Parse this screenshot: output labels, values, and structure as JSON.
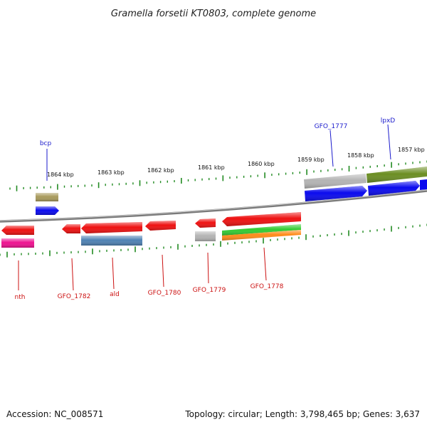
{
  "title": "Gramella forsetii KT0803, complete genome",
  "footer": {
    "accession": "Accession: NC_008571",
    "summary": "Topology: circular; Length: 3,798,465 bp; Genes: 3,637"
  },
  "scale_labels": [
    "1864 kbp",
    "1863 kbp",
    "1862 kbp",
    "1861 kbp",
    "1860 kbp",
    "1859 kbp",
    "1858 kbp",
    "1857 kbp"
  ],
  "gene_labels": {
    "top": [
      "bcp",
      "GFO_1777",
      "lpxD"
    ],
    "bottom": [
      "nth",
      "GFO_1782",
      "ald",
      "GFO_1780",
      "GFO_1779",
      "GFO_1778"
    ]
  },
  "colors": {
    "cds_red": "#ee1111",
    "cds_blue": "#0a0aee",
    "olive": "#6b8e23",
    "khaki": "#a89a5c",
    "gray": "#b4b4b4",
    "steelblue": "#4f82b4",
    "magenta": "#ee1290",
    "green": "#33cc33",
    "orange": "#ff8c1a",
    "tick_green": "#228b22",
    "backbone": "#808080"
  }
}
